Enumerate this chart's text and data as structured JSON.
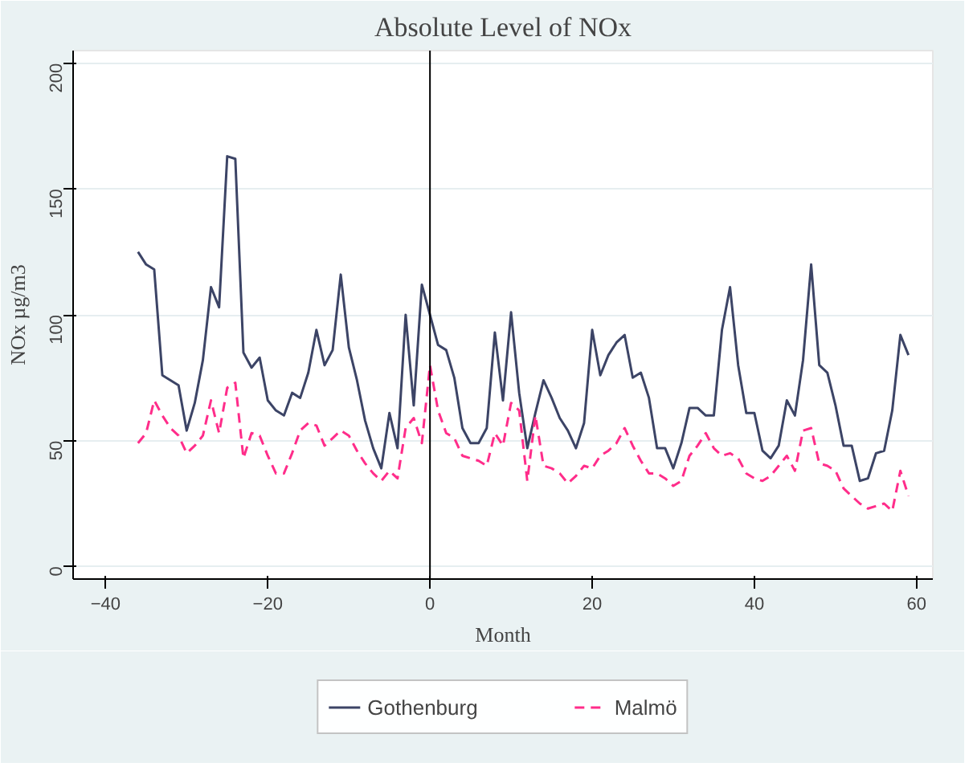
{
  "chart_data": {
    "type": "line",
    "title": "Absolute Level of NOx",
    "xlabel": "Month",
    "ylabel": "NOx µg/m3",
    "x": [
      -36,
      -35,
      -34,
      -33,
      -32,
      -31,
      -30,
      -29,
      -28,
      -27,
      -26,
      -25,
      -24,
      -23,
      -22,
      -21,
      -20,
      -19,
      -18,
      -17,
      -16,
      -15,
      -14,
      -13,
      -12,
      -11,
      -10,
      -9,
      -8,
      -7,
      -6,
      -5,
      -4,
      -3,
      -2,
      -1,
      0,
      1,
      2,
      3,
      4,
      5,
      6,
      7,
      8,
      9,
      10,
      11,
      12,
      13,
      14,
      15,
      16,
      17,
      18,
      19,
      20,
      21,
      22,
      23,
      24,
      25,
      26,
      27,
      28,
      29,
      30,
      31,
      32,
      33,
      34,
      35,
      36,
      37,
      38,
      39,
      40,
      41,
      42,
      43,
      44,
      45,
      46,
      47,
      48,
      49,
      50,
      51,
      52,
      53,
      54,
      55,
      56,
      57,
      58,
      59
    ],
    "series": [
      {
        "name": "Gothenburg",
        "color": "#3c4466",
        "line_style": "solid",
        "values": [
          125,
          120,
          118,
          76,
          74,
          72,
          54,
          65,
          82,
          111,
          103,
          163,
          162,
          85,
          79,
          83,
          66,
          62,
          60,
          69,
          67,
          77,
          94,
          80,
          86,
          116,
          87,
          74,
          58,
          47,
          39,
          61,
          47,
          100,
          64,
          112,
          100,
          88,
          86,
          75,
          55,
          49,
          49,
          55,
          93,
          66,
          101,
          69,
          47,
          61,
          74,
          67,
          59,
          54,
          47,
          57,
          94,
          76,
          84,
          89,
          92,
          75,
          77,
          67,
          47,
          47,
          39,
          49,
          63,
          63,
          60,
          60,
          94,
          111,
          80,
          61,
          61,
          46,
          43,
          48,
          66,
          60,
          82,
          120,
          80,
          77,
          64,
          48,
          48,
          34,
          35,
          45,
          46,
          62,
          92,
          84
        ]
      },
      {
        "name": "Malmö",
        "color": "#ff2d8a",
        "line_style": "dashed",
        "values": [
          49,
          53,
          66,
          60,
          55,
          52,
          45,
          48,
          52,
          66,
          53,
          71,
          73,
          43,
          53,
          52,
          44,
          37,
          37,
          45,
          54,
          57,
          56,
          48,
          51,
          54,
          52,
          46,
          41,
          37,
          34,
          38,
          35,
          55,
          59,
          49,
          80,
          62,
          53,
          51,
          44,
          43,
          42,
          40,
          53,
          48,
          65,
          62,
          34,
          60,
          40,
          39,
          37,
          33,
          36,
          40,
          39,
          44,
          46,
          49,
          55,
          48,
          42,
          37,
          37,
          35,
          32,
          34,
          44,
          48,
          53,
          47,
          44,
          45,
          43,
          37,
          35,
          34,
          36,
          40,
          44,
          38,
          54,
          55,
          41,
          40,
          38,
          31,
          28,
          25,
          23,
          24,
          25,
          22,
          38,
          28
        ]
      }
    ],
    "xlim": [
      -44,
      62
    ],
    "xticks": [
      -40,
      -20,
      0,
      20,
      40,
      60
    ],
    "ylim": [
      -5,
      205
    ],
    "yticks": [
      0,
      50,
      100,
      150,
      200
    ],
    "grid": "y",
    "legend": "bottom",
    "ref_lines": [
      {
        "axis": "x",
        "value": 0,
        "color": "#000000"
      }
    ]
  }
}
